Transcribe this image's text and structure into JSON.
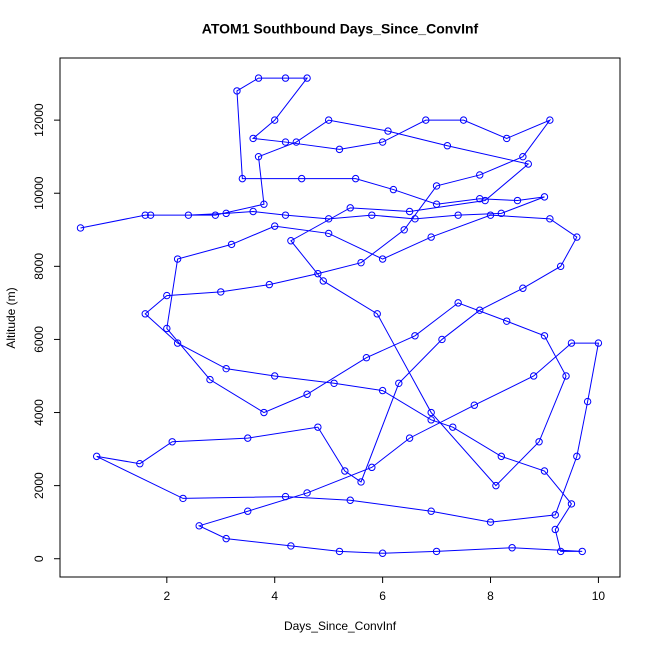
{
  "chart_data": {
    "type": "scatter",
    "title": "ATOM1 Southbound Days_Since_ConvInf",
    "x_label": "Days_Since_ConvInf",
    "y_label": "Altitude (m)",
    "xlim": [
      0.02,
      10.4
    ],
    "ylim": [
      -500,
      13700
    ],
    "xticks": [
      2,
      4,
      6,
      8,
      10
    ],
    "yticks": [
      0,
      2000,
      4000,
      6000,
      8000,
      10000,
      12000
    ],
    "series": [
      {
        "color": "#0000ff",
        "x": [
          0.4,
          1.6,
          2.4,
          3.1,
          3.6,
          4.2,
          5.0,
          5.8,
          6.6,
          7.4,
          8.2,
          9.0,
          8.5,
          7.8,
          7.0,
          6.2,
          5.5,
          4.5,
          3.4,
          3.3,
          3.7,
          4.2,
          4.6,
          4.0,
          3.6,
          4.2,
          5.2,
          6.0,
          6.8,
          7.5,
          8.3,
          9.1,
          8.6,
          7.8,
          7.0,
          6.4,
          5.6,
          4.8,
          3.9,
          3.0,
          2.0,
          1.6,
          2.2,
          3.1,
          4.0,
          5.1,
          6.0,
          6.9,
          7.3,
          8.2,
          9.0,
          9.5,
          9.2,
          9.3,
          9.7,
          8.4,
          7.0,
          6.0,
          5.2,
          4.3,
          3.1,
          2.6,
          3.5,
          4.6,
          5.8,
          6.5,
          7.7,
          8.8,
          9.5,
          10.0,
          9.8,
          9.6,
          9.2,
          8.0,
          6.9,
          5.4,
          4.2,
          2.3,
          0.7,
          1.5,
          2.1,
          3.5,
          4.8,
          5.3,
          5.6,
          6.3,
          7.1,
          7.8,
          8.6,
          9.3,
          9.6,
          9.1,
          8.0,
          6.9,
          6.0,
          5.0,
          4.0,
          3.2,
          2.2,
          2.0,
          2.8,
          3.8,
          4.6,
          5.7,
          6.6,
          7.4,
          8.3,
          9.0,
          9.4,
          8.9,
          8.1,
          6.9,
          5.9,
          4.9,
          4.3,
          5.4,
          6.5,
          7.9,
          8.7,
          7.2,
          6.1,
          5.0,
          4.4,
          3.7,
          3.8,
          2.9,
          1.7
        ],
        "values": [
          9050,
          9400,
          9400,
          9450,
          9500,
          9400,
          9300,
          9400,
          9300,
          9400,
          9450,
          9900,
          9800,
          9850,
          9700,
          10100,
          10400,
          10400,
          10400,
          12800,
          13150,
          13150,
          13150,
          12000,
          11500,
          11400,
          11200,
          11400,
          12000,
          12000,
          11500,
          12000,
          11000,
          10500,
          10200,
          9000,
          8100,
          7800,
          7500,
          7300,
          7200,
          6700,
          5900,
          5200,
          5000,
          4800,
          4600,
          3800,
          3600,
          2800,
          2400,
          1500,
          800,
          200,
          200,
          300,
          200,
          150,
          200,
          350,
          550,
          900,
          1300,
          1800,
          2500,
          3300,
          4200,
          5000,
          5900,
          5900,
          4300,
          2800,
          1200,
          1000,
          1300,
          1600,
          1700,
          1650,
          2800,
          2600,
          3200,
          3300,
          3600,
          2400,
          2100,
          4800,
          6000,
          6800,
          7400,
          8000,
          8800,
          9300,
          9400,
          8800,
          8200,
          8900,
          9100,
          8600,
          8200,
          6300,
          4900,
          4000,
          4500,
          5500,
          6100,
          7000,
          6500,
          6100,
          5000,
          3200,
          2000,
          4000,
          6700,
          7600,
          8700,
          9600,
          9500,
          9800,
          10800,
          11300,
          11700,
          12000,
          11400,
          11000,
          9700,
          9400,
          9400
        ]
      }
    ]
  }
}
